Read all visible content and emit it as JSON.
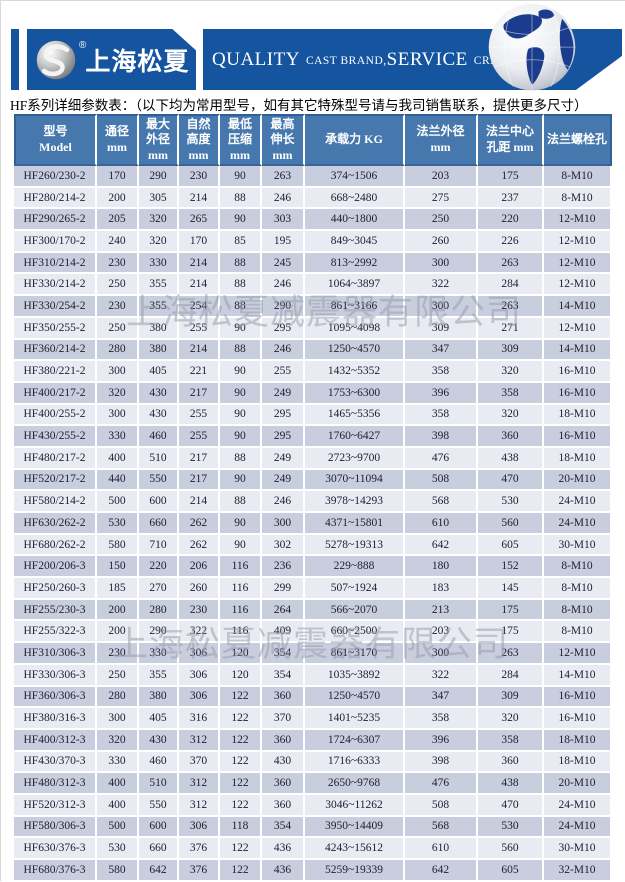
{
  "header": {
    "brand": {
      "name": "上海松夏",
      "reg": "®"
    },
    "banner": {
      "quality": "QUALITY",
      "cast": "CAST BRAND,",
      "service": "SERVICE",
      "creat": "CREAT VALUE"
    }
  },
  "subtitle": "HF系列详细参数表：（以下均为常用型号，如有其它特殊型号请与我司销售联系，提供更多尺寸）",
  "watermark": "上海松夏减震器有限公司",
  "colors": {
    "banner_blue": "#15549f",
    "table_header_blue": "#4678ae",
    "row_dark": "#c9cede",
    "row_light": "#e9ebf3",
    "header_border": "#2e5f96",
    "globe_continent": "#1b3c8c"
  },
  "table": {
    "headers": [
      "型号\nModel",
      "通径\nmm",
      "最大\n外径\nmm",
      "自然\n高度\nmm",
      "最低\n压缩\nmm",
      "最高\n伸长\nmm",
      "承载力 KG",
      "法兰外径\nmm",
      "法兰中心\n孔距 mm",
      "法兰螺栓孔"
    ],
    "rows": [
      [
        "HF260/230-2",
        "170",
        "290",
        "230",
        "90",
        "263",
        "374~1506",
        "203",
        "175",
        "8-M10"
      ],
      [
        "HF280/214-2",
        "200",
        "305",
        "214",
        "88",
        "246",
        "668~2480",
        "275",
        "237",
        "8-M10"
      ],
      [
        "HF290/265-2",
        "205",
        "320",
        "265",
        "90",
        "303",
        "440~1800",
        "250",
        "220",
        "12-M10"
      ],
      [
        "HF300/170-2",
        "240",
        "320",
        "170",
        "85",
        "195",
        "849~3045",
        "260",
        "226",
        "12-M10"
      ],
      [
        "HF310/214-2",
        "230",
        "330",
        "214",
        "88",
        "245",
        "813~2992",
        "300",
        "263",
        "12-M10"
      ],
      [
        "HF330/214-2",
        "250",
        "355",
        "214",
        "88",
        "246",
        "1064~3897",
        "322",
        "284",
        "12-M10"
      ],
      [
        "HF330/254-2",
        "230",
        "355",
        "254",
        "88",
        "290",
        "861~3166",
        "300",
        "263",
        "14-M10"
      ],
      [
        "HF350/255-2",
        "250",
        "380",
        "255",
        "90",
        "295",
        "1095~4098",
        "309",
        "271",
        "12-M10"
      ],
      [
        "HF360/214-2",
        "280",
        "380",
        "214",
        "88",
        "246",
        "1250~4570",
        "347",
        "309",
        "14-M10"
      ],
      [
        "HF380/221-2",
        "300",
        "405",
        "221",
        "90",
        "255",
        "1432~5352",
        "358",
        "320",
        "16-M10"
      ],
      [
        "HF400/217-2",
        "320",
        "430",
        "217",
        "90",
        "249",
        "1753~6300",
        "396",
        "358",
        "16-M10"
      ],
      [
        "HF400/255-2",
        "300",
        "430",
        "255",
        "90",
        "295",
        "1465~5356",
        "358",
        "320",
        "18-M10"
      ],
      [
        "HF430/255-2",
        "330",
        "460",
        "255",
        "90",
        "295",
        "1760~6427",
        "398",
        "360",
        "16-M10"
      ],
      [
        "HF480/217-2",
        "400",
        "510",
        "217",
        "88",
        "249",
        "2723~9700",
        "476",
        "438",
        "18-M10"
      ],
      [
        "HF520/217-2",
        "440",
        "550",
        "217",
        "90",
        "249",
        "3070~11094",
        "508",
        "470",
        "20-M10"
      ],
      [
        "HF580/214-2",
        "500",
        "600",
        "214",
        "88",
        "246",
        "3978~14293",
        "568",
        "530",
        "24-M10"
      ],
      [
        "HF630/262-2",
        "530",
        "660",
        "262",
        "90",
        "300",
        "4371~15801",
        "610",
        "560",
        "24-M10"
      ],
      [
        "HF680/262-2",
        "580",
        "710",
        "262",
        "90",
        "302",
        "5278~19313",
        "642",
        "605",
        "30-M10"
      ],
      [
        "HF200/206-3",
        "150",
        "220",
        "206",
        "116",
        "236",
        "229~888",
        "180",
        "152",
        "8-M10"
      ],
      [
        "HF250/260-3",
        "185",
        "270",
        "260",
        "116",
        "299",
        "507~1924",
        "183",
        "145",
        "8-M10"
      ],
      [
        "HF255/230-3",
        "200",
        "280",
        "230",
        "116",
        "264",
        "566~2070",
        "213",
        "175",
        "8-M10"
      ],
      [
        "HF255/322-3",
        "200",
        "290",
        "322",
        "116",
        "409",
        "660~2500",
        "203",
        "175",
        "8-M10"
      ],
      [
        "HF310/306-3",
        "230",
        "330",
        "306",
        "120",
        "354",
        "861~3170",
        "300",
        "263",
        "12-M10"
      ],
      [
        "HF330/306-3",
        "250",
        "355",
        "306",
        "120",
        "354",
        "1035~3892",
        "322",
        "284",
        "14-M10"
      ],
      [
        "HF360/306-3",
        "280",
        "380",
        "306",
        "122",
        "360",
        "1250~4570",
        "347",
        "309",
        "16-M10"
      ],
      [
        "HF380/316-3",
        "300",
        "405",
        "316",
        "122",
        "370",
        "1401~5235",
        "358",
        "320",
        "16-M10"
      ],
      [
        "HF400/312-3",
        "320",
        "430",
        "312",
        "122",
        "360",
        "1724~6307",
        "396",
        "358",
        "18-M10"
      ],
      [
        "HF430/370-3",
        "330",
        "460",
        "370",
        "122",
        "430",
        "1716~6333",
        "398",
        "360",
        "18-M10"
      ],
      [
        "HF480/312-3",
        "400",
        "510",
        "312",
        "122",
        "360",
        "2650~9768",
        "476",
        "438",
        "20-M10"
      ],
      [
        "HF520/312-3",
        "400",
        "550",
        "312",
        "122",
        "360",
        "3046~11262",
        "508",
        "470",
        "24-M10"
      ],
      [
        "HF580/306-3",
        "500",
        "600",
        "306",
        "118",
        "354",
        "3950~14409",
        "568",
        "530",
        "24-M10"
      ],
      [
        "HF630/376-3",
        "530",
        "660",
        "376",
        "122",
        "436",
        "4243~15612",
        "610",
        "560",
        "30-M10"
      ],
      [
        "HF680/376-3",
        "580",
        "642",
        "376",
        "122",
        "436",
        "5259~19339",
        "642",
        "605",
        "32-M10"
      ]
    ]
  }
}
